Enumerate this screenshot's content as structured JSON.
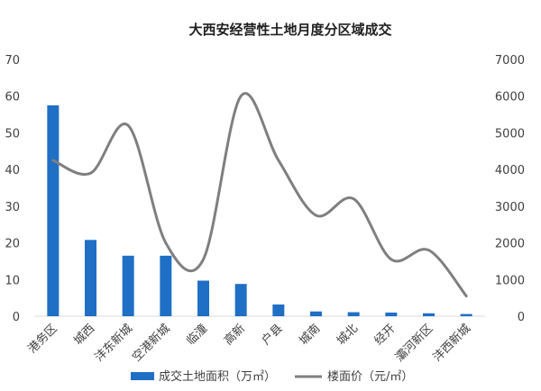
{
  "chart_data": {
    "type": "bar",
    "title": "大西安经营性土地月度分区域成交",
    "categories": [
      "港务区",
      "城西",
      "沣东新城",
      "空港新城",
      "临潼",
      "高新",
      "户县",
      "城南",
      "城北",
      "经开",
      "灞河新区",
      "沣西新城"
    ],
    "series": [
      {
        "name": "成交土地面积（万㎡）",
        "type": "bar",
        "axis": "left",
        "color": "#1f6fc5",
        "values": [
          57.5,
          20.8,
          16.5,
          16.5,
          9.7,
          8.8,
          3.2,
          1.3,
          1.1,
          1.0,
          0.8,
          0.6
        ]
      },
      {
        "name": "楼面价（元/㎡）",
        "type": "line",
        "axis": "right",
        "color": "#7f7f7f",
        "values": [
          4250,
          3900,
          5200,
          2000,
          1550,
          6000,
          4250,
          2750,
          3200,
          1550,
          1800,
          550
        ]
      }
    ],
    "y_left": {
      "min": 0,
      "max": 70,
      "ticks": [
        "0",
        "10",
        "20",
        "30",
        "40",
        "50",
        "60",
        "70"
      ]
    },
    "y_right": {
      "min": 0,
      "max": 7000,
      "ticks": [
        "0",
        "1000",
        "2000",
        "3000",
        "4000",
        "5000",
        "6000",
        "7000"
      ]
    },
    "grid": false,
    "legend_position": "bottom"
  }
}
